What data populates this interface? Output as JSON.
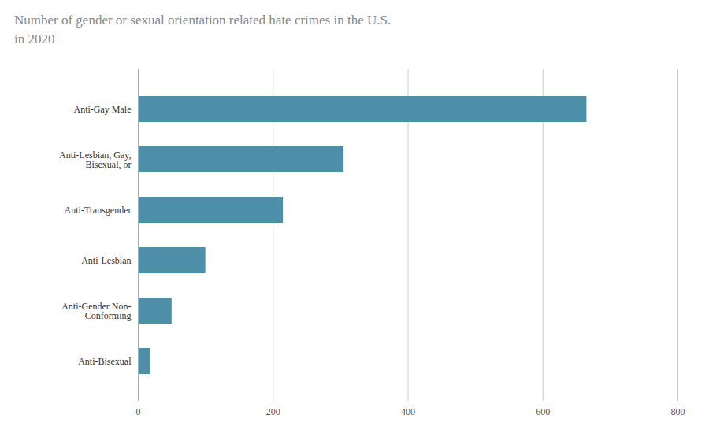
{
  "chart_data": {
    "type": "bar",
    "orientation": "horizontal",
    "title": "Number of gender or sexual orientation related hate crimes in the U.S.\nin 2020",
    "categories": [
      "Anti-Bisexual",
      "Anti-Gender Non-\nConforming",
      "Anti-Lesbian",
      "Anti-Transgender",
      "Anti-Lesbian, Gay,\nBisexual, or",
      "Anti-Gay Male"
    ],
    "values": [
      18,
      50,
      100,
      215,
      305,
      665
    ],
    "color": "#4d8fa8",
    "xlim": [
      0,
      800
    ],
    "xticks": [
      0,
      200,
      400,
      600,
      800
    ],
    "grid": true
  }
}
